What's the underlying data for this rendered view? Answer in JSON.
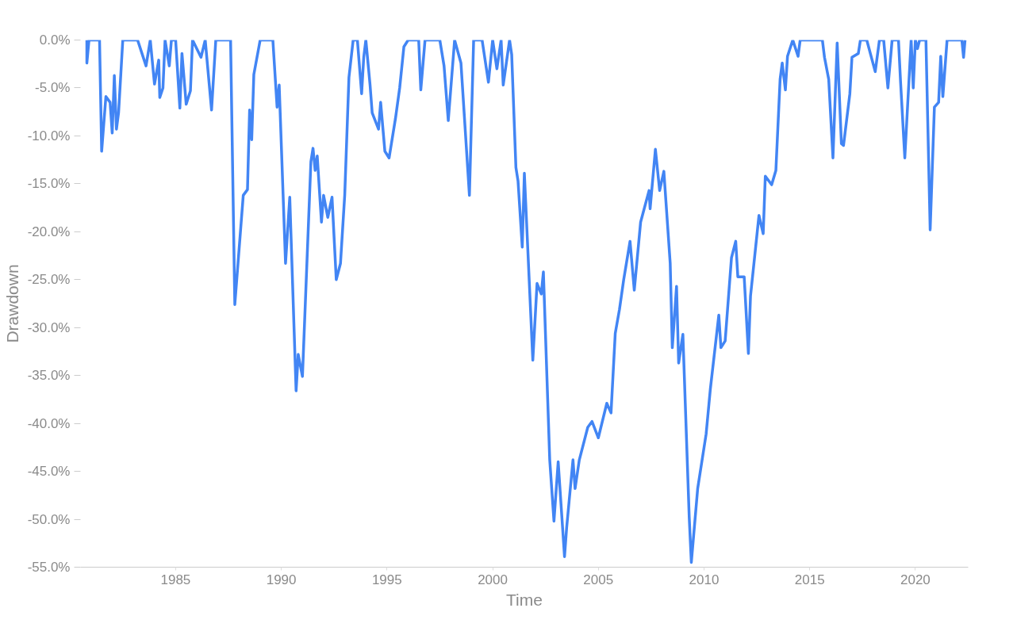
{
  "chart_data": {
    "type": "line",
    "xlabel": "Time",
    "ylabel": "Drawdown",
    "x": [
      1980.8,
      1980.8,
      1980.9,
      1981.4,
      1981.5,
      1981.7,
      1981.9,
      1982.0,
      1982.1,
      1982.2,
      1982.3,
      1982.5,
      1983.2,
      1983.6,
      1983.8,
      1984.0,
      1984.2,
      1984.25,
      1984.4,
      1984.5,
      1984.7,
      1984.8,
      1985.0,
      1985.2,
      1985.3,
      1985.5,
      1985.7,
      1985.8,
      1986.2,
      1986.4,
      1986.7,
      1986.9,
      1987.6,
      1987.8,
      1988.2,
      1988.4,
      1988.5,
      1988.6,
      1988.7,
      1989.0,
      1989.6,
      1989.8,
      1989.9,
      1990.2,
      1990.4,
      1990.7,
      1990.8,
      1991.0,
      1991.4,
      1991.5,
      1991.6,
      1991.7,
      1991.9,
      1992.0,
      1992.2,
      1992.4,
      1992.6,
      1992.8,
      1993.0,
      1993.2,
      1993.4,
      1993.6,
      1993.8,
      1993.9,
      1994.0,
      1994.2,
      1994.3,
      1994.6,
      1994.7,
      1994.9,
      1995.1,
      1995.4,
      1995.6,
      1995.8,
      1996.0,
      1996.5,
      1996.6,
      1996.8,
      1997.5,
      1997.7,
      1997.9,
      1998.2,
      1998.5,
      1998.9,
      1999.1,
      1999.5,
      1999.8,
      2000.0,
      2000.2,
      2000.4,
      2000.5,
      2000.8,
      2000.9,
      2001.1,
      2001.2,
      2001.4,
      2001.5,
      2001.9,
      2002.1,
      2002.3,
      2002.4,
      2002.7,
      2002.9,
      2003.1,
      2003.4,
      2003.5,
      2003.8,
      2003.9,
      2004.1,
      2004.5,
      2004.7,
      2005.0,
      2005.4,
      2005.6,
      2005.8,
      2006.0,
      2006.2,
      2006.5,
      2006.7,
      2007.0,
      2007.4,
      2007.45,
      2007.7,
      2007.9,
      2008.1,
      2008.4,
      2008.5,
      2008.7,
      2008.8,
      2009.0,
      2009.3,
      2009.4,
      2009.7,
      2010.1,
      2010.3,
      2010.7,
      2010.8,
      2011.0,
      2011.3,
      2011.5,
      2011.6,
      2011.9,
      2012.1,
      2012.2,
      2012.6,
      2012.8,
      2012.9,
      2013.2,
      2013.4,
      2013.6,
      2013.7,
      2013.85,
      2013.95,
      2014.2,
      2014.45,
      2014.55,
      2015.6,
      2015.7,
      2015.9,
      2016.1,
      2016.3,
      2016.5,
      2016.6,
      2016.9,
      2017.0,
      2017.3,
      2017.4,
      2017.7,
      2018.1,
      2018.3,
      2018.5,
      2018.7,
      2018.9,
      2019.2,
      2019.3,
      2019.5,
      2019.8,
      2019.9,
      2020.0,
      2020.1,
      2020.2,
      2020.5,
      2020.7,
      2020.9,
      2021.1,
      2021.2,
      2021.3,
      2021.5,
      2022.2,
      2022.28,
      2022.35
    ],
    "values": [
      0,
      -2.4,
      0,
      0,
      -11.6,
      -5.9,
      -6.5,
      -9.7,
      -3.7,
      -9.3,
      -7.6,
      0,
      0,
      -2.7,
      0,
      -4.6,
      -2.1,
      -6.0,
      -5.0,
      0,
      -2.7,
      0,
      0,
      -7.1,
      -1.4,
      -6.7,
      -5.3,
      0,
      -1.8,
      0,
      -7.3,
      0,
      0,
      -27.6,
      -16.2,
      -15.6,
      -7.3,
      -10.4,
      -3.6,
      0,
      0,
      -7.0,
      -4.7,
      -23.3,
      -16.4,
      -36.6,
      -32.8,
      -35.1,
      -12.7,
      -11.3,
      -13.6,
      -12.1,
      -19.0,
      -16.2,
      -18.5,
      -16.4,
      -25.0,
      -23.3,
      -16.2,
      -3.9,
      0,
      0,
      -5.6,
      -1.8,
      0,
      -4.7,
      -7.6,
      -9.3,
      -6.5,
      -11.6,
      -12.3,
      -8.2,
      -5.0,
      -0.7,
      0,
      0,
      -5.2,
      0,
      0,
      -2.7,
      -8.4,
      0,
      -2.4,
      -16.2,
      0,
      0,
      -4.4,
      0,
      -3.0,
      0,
      -4.7,
      0,
      -1.5,
      -13.3,
      -14.7,
      -21.6,
      -13.9,
      -33.4,
      -25.4,
      -26.5,
      -24.2,
      -43.8,
      -50.2,
      -44.0,
      -53.9,
      -50.9,
      -43.8,
      -46.8,
      -43.8,
      -40.4,
      -39.8,
      -41.5,
      -37.9,
      -38.9,
      -30.6,
      -28.1,
      -25.0,
      -21.0,
      -26.1,
      -19.0,
      -15.7,
      -17.6,
      -11.4,
      -15.7,
      -13.7,
      -23.3,
      -32.1,
      -25.7,
      -33.7,
      -30.7,
      -49.8,
      -54.5,
      -46.8,
      -41.1,
      -36.4,
      -28.7,
      -32.1,
      -31.4,
      -22.7,
      -21.0,
      -24.7,
      -24.7,
      -32.7,
      -26.7,
      -18.3,
      -20.2,
      -14.2,
      -15.1,
      -13.6,
      -4.1,
      -2.4,
      -5.2,
      -1.7,
      0,
      -1.7,
      0,
      0,
      -1.8,
      -4.1,
      -12.3,
      -0.3,
      -10.8,
      -11.0,
      -5.6,
      -1.8,
      -1.4,
      0,
      0,
      -3.3,
      0,
      0,
      -5.0,
      0,
      0,
      -4.4,
      -12.3,
      0,
      -5.0,
      0,
      -0.9,
      0,
      0,
      -19.8,
      -7.0,
      -6.5,
      -1.7,
      -5.9,
      0,
      0,
      -1.8,
      0
    ],
    "color": "#4285f4",
    "xlim": [
      1980.5,
      2022.5
    ],
    "xticks": [
      1985,
      1990,
      1995,
      2000,
      2005,
      2010,
      2015,
      2020
    ],
    "ylim": [
      -55,
      0
    ],
    "yticks": [
      {
        "value": 0,
        "label": "0.0%"
      },
      {
        "value": -5,
        "label": "-5.0%"
      },
      {
        "value": -10,
        "label": "-10.0%"
      },
      {
        "value": -15,
        "label": "-15.0%"
      },
      {
        "value": -20,
        "label": "-20.0%"
      },
      {
        "value": -25,
        "label": "-25.0%"
      },
      {
        "value": -30,
        "label": "-30.0%"
      },
      {
        "value": -35,
        "label": "-35.0%"
      },
      {
        "value": -40,
        "label": "-40.0%"
      },
      {
        "value": -45,
        "label": "-45.0%"
      },
      {
        "value": -50,
        "label": "-50.0%"
      },
      {
        "value": -55,
        "label": "-55.0%"
      }
    ],
    "grid": false,
    "marker": "none",
    "line_style": "solid"
  }
}
